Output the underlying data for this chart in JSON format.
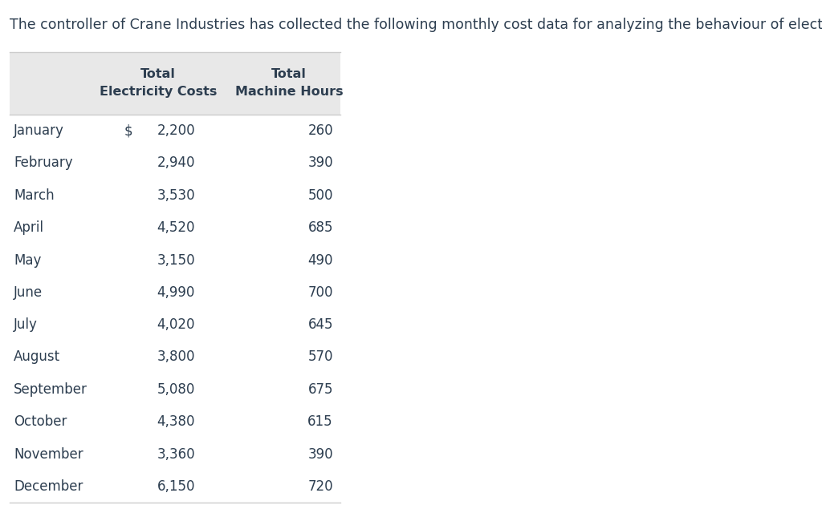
{
  "title_text": "The controller of Crane Industries has collected the following monthly cost data for analyzing the behaviour of electricity costs.",
  "header_col2_line1": "Total",
  "header_col2_line2": "Electricity Costs",
  "header_col3_line1": "Total",
  "header_col3_line2": "Machine Hours",
  "months": [
    "January",
    "February",
    "March",
    "April",
    "May",
    "June",
    "July",
    "August",
    "September",
    "October",
    "November",
    "December"
  ],
  "electricity_costs": [
    2200,
    2940,
    3530,
    4520,
    3150,
    4990,
    4020,
    3800,
    5080,
    4380,
    3360,
    6150
  ],
  "machine_hours": [
    260,
    390,
    500,
    685,
    490,
    700,
    645,
    570,
    675,
    615,
    390,
    720
  ],
  "bg_color": "#ffffff",
  "header_bg_color": "#e8e8e8",
  "text_color": "#2d3e50",
  "title_fontsize": 12.5,
  "header_fontsize": 11.5,
  "data_fontsize": 12
}
